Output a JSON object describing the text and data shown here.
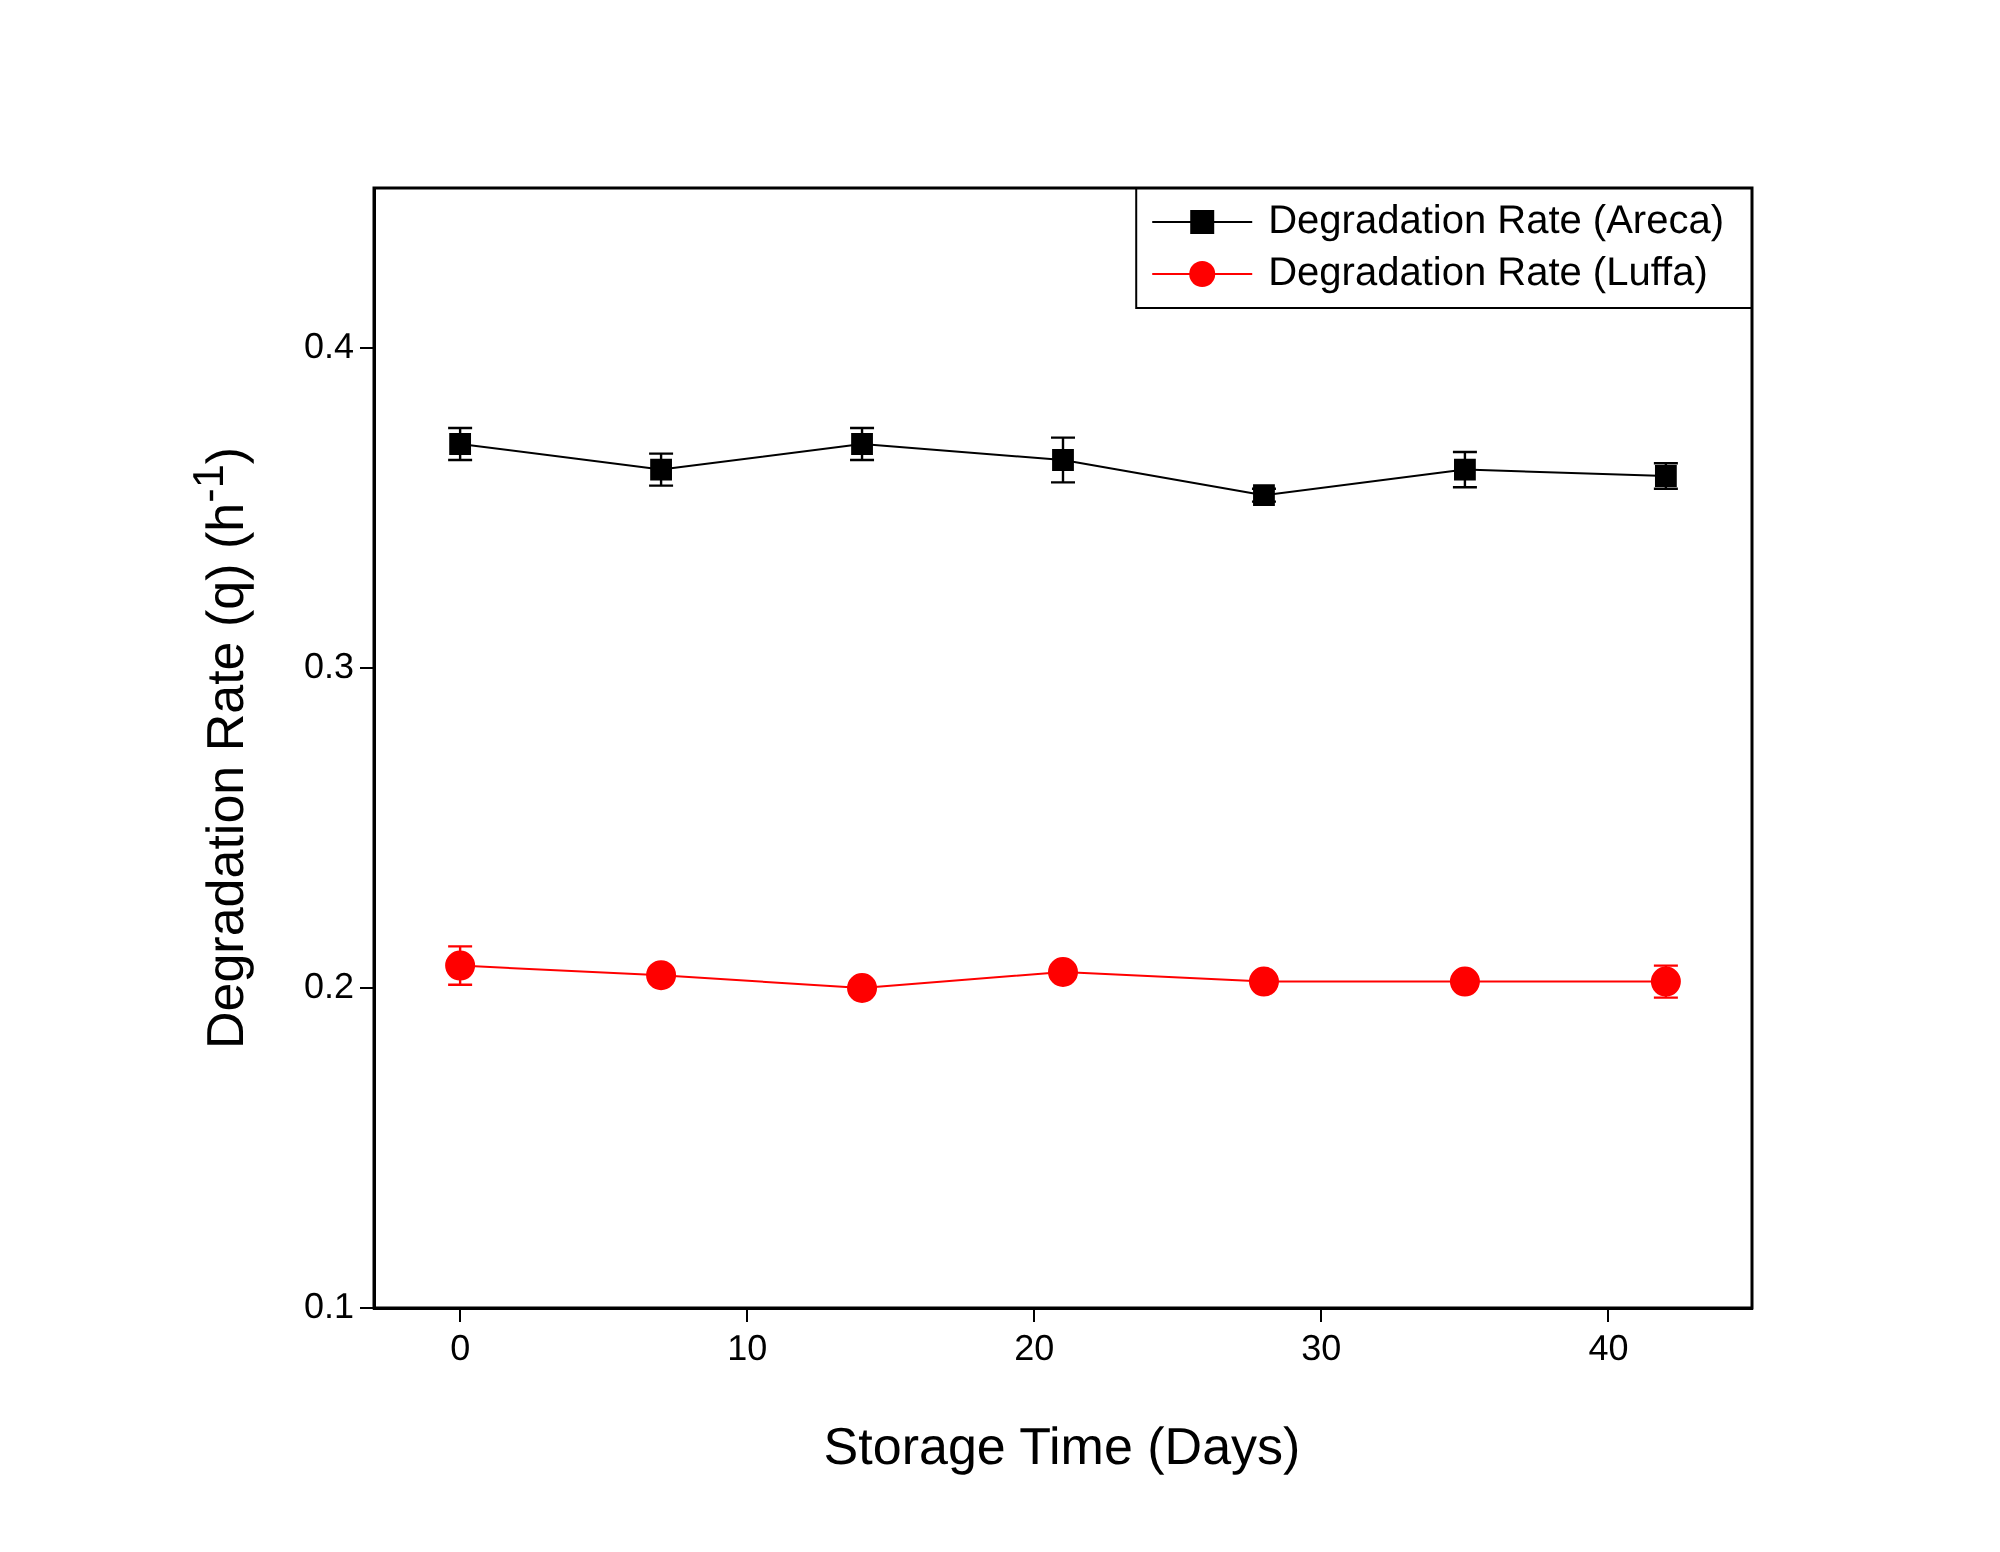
{
  "chart_data": {
    "type": "line",
    "xlabel": "Storage Time (Days)",
    "ylabel": "Degradation Rate (q) (h$^{-1}$)",
    "x": [
      0,
      7,
      14,
      21,
      28,
      35,
      42
    ],
    "series": [
      {
        "name": "Degradation Rate (Areca)",
        "color": "#000000",
        "marker": "square",
        "values": [
          0.37,
          0.362,
          0.37,
          0.365,
          0.354,
          0.362,
          0.36
        ],
        "errors": [
          0.005,
          0.005,
          0.005,
          0.007,
          0.002,
          0.0055,
          0.004
        ]
      },
      {
        "name": "Degradation Rate (Luffa)",
        "color": "#ff0000",
        "marker": "circle",
        "values": [
          0.207,
          0.204,
          0.2,
          0.205,
          0.202,
          0.202,
          0.202
        ],
        "errors": [
          0.006,
          0.002,
          0.002,
          0.002,
          0.002,
          0.002,
          0.005
        ]
      }
    ],
    "xlim": [
      -3,
      45
    ],
    "xticks": [
      0,
      10,
      20,
      30,
      40
    ],
    "ylim": [
      0.1,
      0.45
    ],
    "yticks": [
      0.1,
      0.2,
      0.3,
      0.4
    ],
    "grid": false,
    "legend": "top right",
    "line_style": "solid"
  }
}
